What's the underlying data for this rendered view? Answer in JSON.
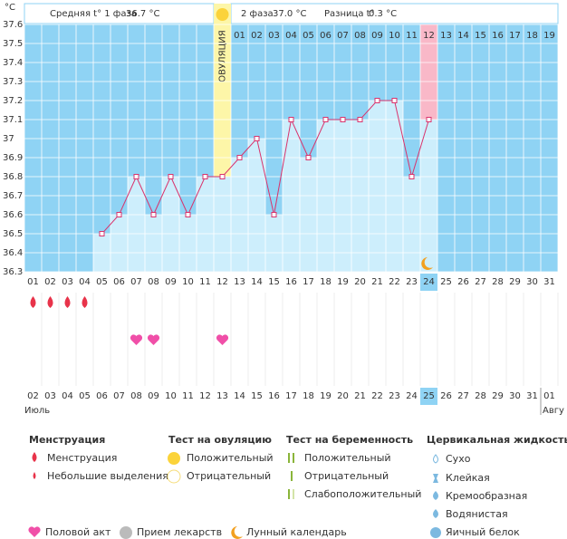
{
  "chart_data": {
    "type": "line",
    "unit": "°C",
    "header": {
      "phase1_label": "Средняя t° 1 фаза",
      "phase1_value": "36.7 °C",
      "phase2_label": "2 фаза",
      "phase2_value": "37.0 °C",
      "diff_label": "Разница t°",
      "diff_value": "0.3 °C"
    },
    "ovulation_label": "ОВУЛЯЦИЯ",
    "ovulation_day": 12,
    "today": 24,
    "cycle_days": [
      "01",
      "02",
      "03",
      "04",
      "05",
      "06",
      "07",
      "08",
      "09",
      "10",
      "11",
      "12",
      "13",
      "14",
      "15",
      "16",
      "17",
      "18",
      "19"
    ],
    "categories": [
      "01",
      "02",
      "03",
      "04",
      "05",
      "06",
      "07",
      "08",
      "09",
      "10",
      "11",
      "12",
      "13",
      "14",
      "15",
      "16",
      "17",
      "18",
      "19",
      "20",
      "21",
      "22",
      "23",
      "24",
      "25",
      "26",
      "27",
      "28",
      "29",
      "30",
      "31"
    ],
    "values": [
      null,
      null,
      null,
      null,
      36.5,
      36.6,
      36.8,
      36.6,
      36.8,
      36.6,
      36.8,
      36.8,
      36.9,
      37.0,
      36.6,
      37.1,
      36.9,
      37.1,
      37.1,
      37.1,
      37.2,
      37.2,
      36.8,
      37.1,
      null,
      null,
      null,
      null,
      null,
      null,
      null
    ],
    "color": "#d9336c",
    "bar_color": "#cdeefc",
    "background": "#8fd3f4",
    "ylim": [
      36.3,
      37.6
    ],
    "yticks": [
      36.3,
      36.4,
      36.5,
      36.6,
      36.7,
      36.8,
      36.9,
      37,
      37.1,
      37.2,
      37.3,
      37.4,
      37.5,
      37.6
    ],
    "menstruation_days": [
      1,
      2,
      3,
      4
    ],
    "intercourse_days": [
      7,
      8,
      12
    ],
    "dates": [
      {
        "label": "02",
        "weekend": false
      },
      {
        "label": "03",
        "weekend": false
      },
      {
        "label": "04",
        "weekend": false
      },
      {
        "label": "05",
        "weekend": false
      },
      {
        "label": "06",
        "weekend": false
      },
      {
        "label": "07",
        "weekend": true
      },
      {
        "label": "08",
        "weekend": true
      },
      {
        "label": "09",
        "weekend": false
      },
      {
        "label": "10",
        "weekend": false
      },
      {
        "label": "11",
        "weekend": false
      },
      {
        "label": "12",
        "weekend": false
      },
      {
        "label": "13",
        "weekend": false
      },
      {
        "label": "14",
        "weekend": true
      },
      {
        "label": "15",
        "weekend": true
      },
      {
        "label": "16",
        "weekend": false
      },
      {
        "label": "17",
        "weekend": false
      },
      {
        "label": "18",
        "weekend": false
      },
      {
        "label": "19",
        "weekend": false
      },
      {
        "label": "20",
        "weekend": false
      },
      {
        "label": "21",
        "weekend": true
      },
      {
        "label": "22",
        "weekend": true
      },
      {
        "label": "23",
        "weekend": false
      },
      {
        "label": "24",
        "weekend": false
      },
      {
        "label": "25",
        "weekend": false
      },
      {
        "label": "26",
        "weekend": false
      },
      {
        "label": "27",
        "weekend": false
      },
      {
        "label": "28",
        "weekend": true
      },
      {
        "label": "29",
        "weekend": true
      },
      {
        "label": "30",
        "weekend": false
      },
      {
        "label": "31",
        "weekend": false
      },
      {
        "label": "01",
        "weekend": false
      }
    ],
    "months": [
      "Июль",
      "Авгу"
    ]
  },
  "legend": {
    "menstruation": {
      "title": "Менструация",
      "items": [
        "Менструация",
        "Небольшие выделения"
      ]
    },
    "ovulation_test": {
      "title": "Тест на овуляцию",
      "items": [
        "Положительный",
        "Отрицательный"
      ]
    },
    "pregnancy_test": {
      "title": "Тест на беременность",
      "items": [
        "Положительный",
        "Отрицательный",
        "Слабоположительный"
      ]
    },
    "cervical": {
      "title": "Цервикальная жидкость",
      "items": [
        "Сухо",
        "Клейкая",
        "Кремообразная",
        "Водянистая",
        "Яичный белок"
      ]
    },
    "other": [
      "Половой акт",
      "Прием лекарств",
      "Лунный календарь"
    ]
  }
}
